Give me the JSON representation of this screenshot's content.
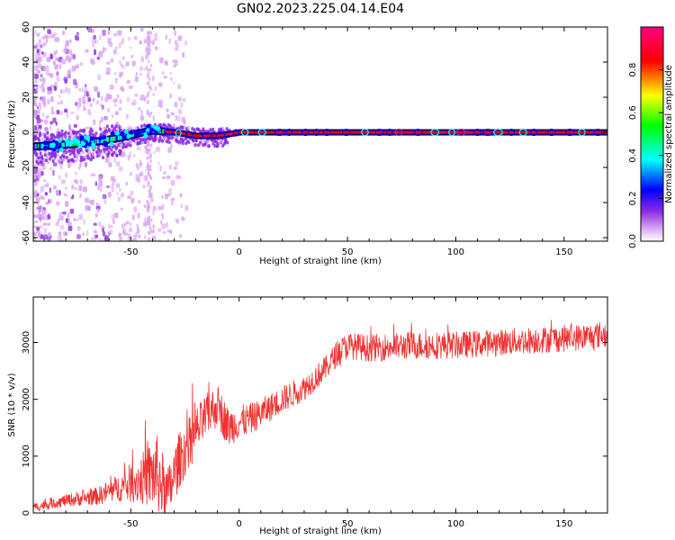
{
  "title": "GN02.2023.225.04.14.E04",
  "chart_data": [
    {
      "type": "heatmap",
      "xlabel": "Height of straight line (km)",
      "ylabel": "Frequency (Hz)",
      "xlim": [
        -95,
        170
      ],
      "ylim": [
        -62,
        60
      ],
      "xticks": [
        -50,
        0,
        50,
        100,
        150
      ],
      "yticks": [
        -60,
        -40,
        -20,
        0,
        20,
        40,
        60
      ],
      "colorbar": {
        "label": "Normalized spectral amplitude",
        "range": [
          0,
          1
        ],
        "ticks": [
          0.0,
          0.2,
          0.4,
          0.6,
          0.8
        ],
        "colors": [
          "#ffffff",
          "#d9a6f2",
          "#8a2be2",
          "#0000ff",
          "#00ffff",
          "#00ff00",
          "#ffff00",
          "#ff0000",
          "#ff0080"
        ]
      },
      "ridge": {
        "description_points_x": [
          -95,
          -80,
          -65,
          -55,
          -45,
          -40,
          -30,
          -20,
          -10,
          0,
          20,
          50,
          100,
          150,
          170
        ],
        "description_points_y": [
          -8,
          -7,
          -5,
          -3,
          0,
          1,
          0,
          -2,
          -2,
          0,
          0,
          0,
          0,
          0,
          0
        ]
      }
    },
    {
      "type": "line",
      "xlabel": "Height of straight line (km)",
      "ylabel": "SNR (10 * v/v)",
      "xlim": [
        -95,
        170
      ],
      "ylim": [
        0,
        3800
      ],
      "xticks": [
        -50,
        0,
        50,
        100,
        150
      ],
      "yticks": [
        0,
        1000,
        2000,
        3000
      ],
      "color": "#f03030",
      "trend_x": [
        -95,
        -80,
        -65,
        -55,
        -45,
        -38,
        -33,
        -28,
        -22,
        -15,
        -10,
        -5,
        0,
        5,
        10,
        20,
        30,
        40,
        45,
        50,
        60,
        80,
        100,
        120,
        140,
        160,
        170
      ],
      "trend_y": [
        100,
        220,
        300,
        450,
        600,
        700,
        300,
        900,
        1300,
        1700,
        1900,
        1500,
        1600,
        1650,
        1750,
        2000,
        2200,
        2550,
        2800,
        2950,
        2900,
        2950,
        2950,
        3000,
        3050,
        3100,
        3150
      ],
      "noise_amplitude": [
        80,
        110,
        160,
        250,
        450,
        700,
        500,
        500,
        450,
        400,
        380,
        350,
        300,
        280,
        260,
        240,
        230,
        220,
        230,
        240,
        240,
        250,
        240,
        240,
        240,
        240,
        240
      ]
    }
  ]
}
